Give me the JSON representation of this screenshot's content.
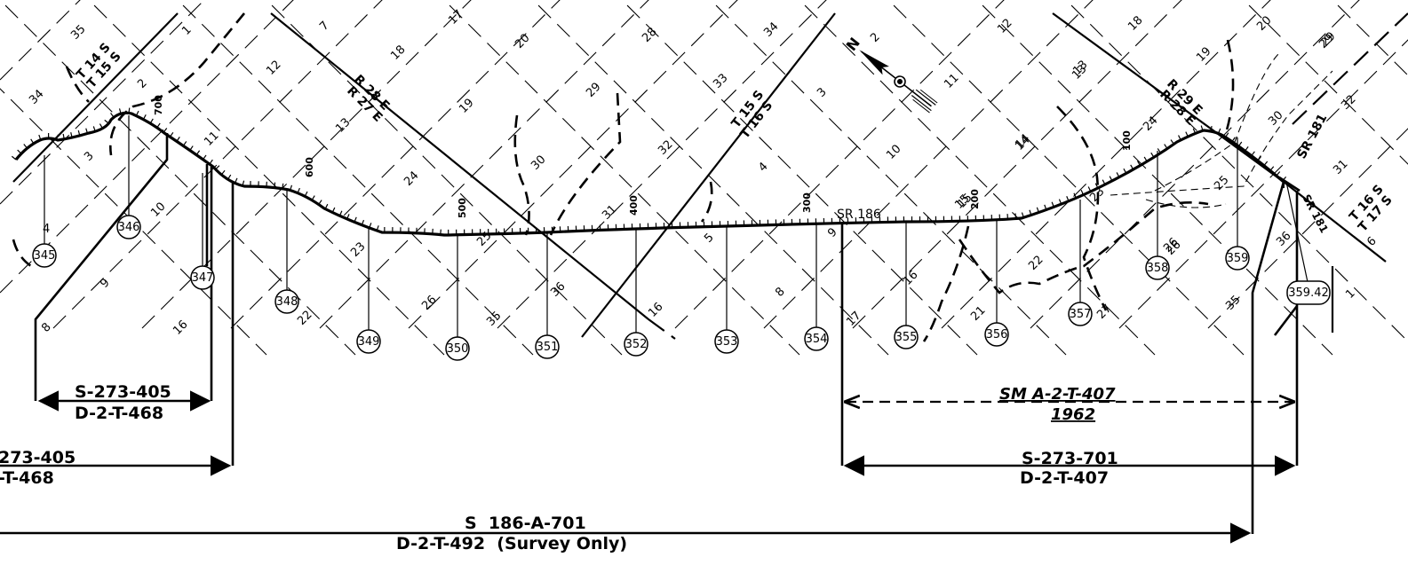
{
  "road": {
    "label": "SR 186",
    "label_secondary": "SR 181"
  },
  "mileposts": [
    "700",
    "600",
    "500",
    "400",
    "300",
    "200",
    "100"
  ],
  "markers": [
    "345",
    "346",
    "347",
    "348",
    "349",
    "350",
    "351",
    "352",
    "353",
    "354",
    "355",
    "356",
    "357",
    "358",
    "359",
    "359.42"
  ],
  "sections": [
    "35",
    "1",
    "34",
    "2",
    "3",
    "4",
    "10",
    "9",
    "8",
    "11",
    "12",
    "7",
    "18",
    "17",
    "20",
    "28",
    "34",
    "2",
    "12",
    "18",
    "20",
    "29",
    "13",
    "13",
    "19",
    "24",
    "23",
    "22",
    "14",
    "29",
    "30",
    "32",
    "33",
    "31",
    "25",
    "26",
    "35",
    "36",
    "16",
    "16",
    "3",
    "10",
    "11",
    "13",
    "14",
    "15",
    "9",
    "17",
    "16",
    "21",
    "22",
    "23",
    "24",
    "25",
    "26",
    "27",
    "29",
    "32",
    "31",
    "36",
    "1",
    "35",
    "30",
    "6",
    "5",
    "8",
    "4",
    "15",
    "26",
    "19"
  ],
  "townships": [
    "T 14 S",
    "T 15 S",
    "R 28 E",
    "R 27 E",
    "T 15 S",
    "T 16 S",
    "R 29 E",
    "R 28 E",
    "T 16 S",
    "T 17 S"
  ],
  "references": {
    "ref1_top": "S-273-405",
    "ref1_bottom": "D-2-T-468",
    "ref2_top": "273-405",
    "ref2_bottom": "-T-468",
    "ref3_top": "SM   A-2-T-407",
    "ref3_bottom": "1962",
    "ref4_top": "S-273-701",
    "ref4_bottom": "D-2-T-407",
    "ref5_top": "S  186-A-701",
    "ref5_bottom": "D-2-T-492  (Survey Only)"
  },
  "north_arrow": {
    "letter": "N"
  }
}
